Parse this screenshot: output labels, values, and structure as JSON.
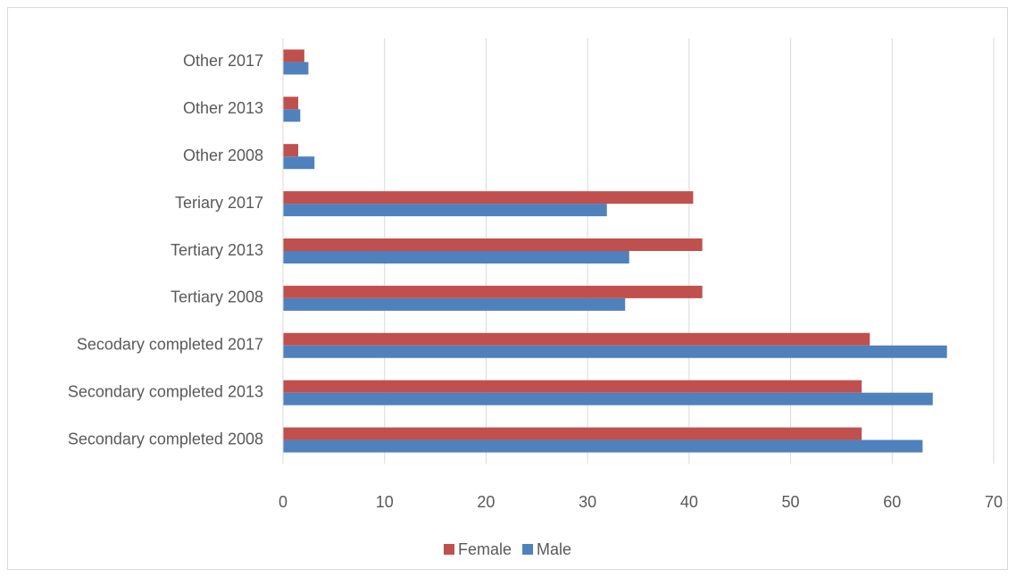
{
  "chart_data": {
    "type": "bar",
    "orientation": "horizontal",
    "categories": [
      "Secondary completed 2008",
      "Secondary completed 2013",
      "Secodary completed 2017",
      "Tertiary 2008",
      "Tertiary 2013",
      "Teriary 2017",
      "Other 2008",
      "Other 2013",
      "Other 2017"
    ],
    "series": [
      {
        "name": "Female",
        "color": "#c0504d",
        "values": [
          57.0,
          57.0,
          57.8,
          41.3,
          41.3,
          40.4,
          1.5,
          1.5,
          2.1
        ]
      },
      {
        "name": "Male",
        "color": "#4f81bd",
        "values": [
          63.0,
          64.0,
          65.4,
          33.7,
          34.1,
          31.9,
          3.1,
          1.7,
          2.5
        ]
      }
    ],
    "xlim": [
      0,
      70
    ],
    "xticks": [
      0,
      10,
      20,
      30,
      40,
      50,
      60,
      70
    ],
    "grid": true,
    "legend": "bottom"
  }
}
